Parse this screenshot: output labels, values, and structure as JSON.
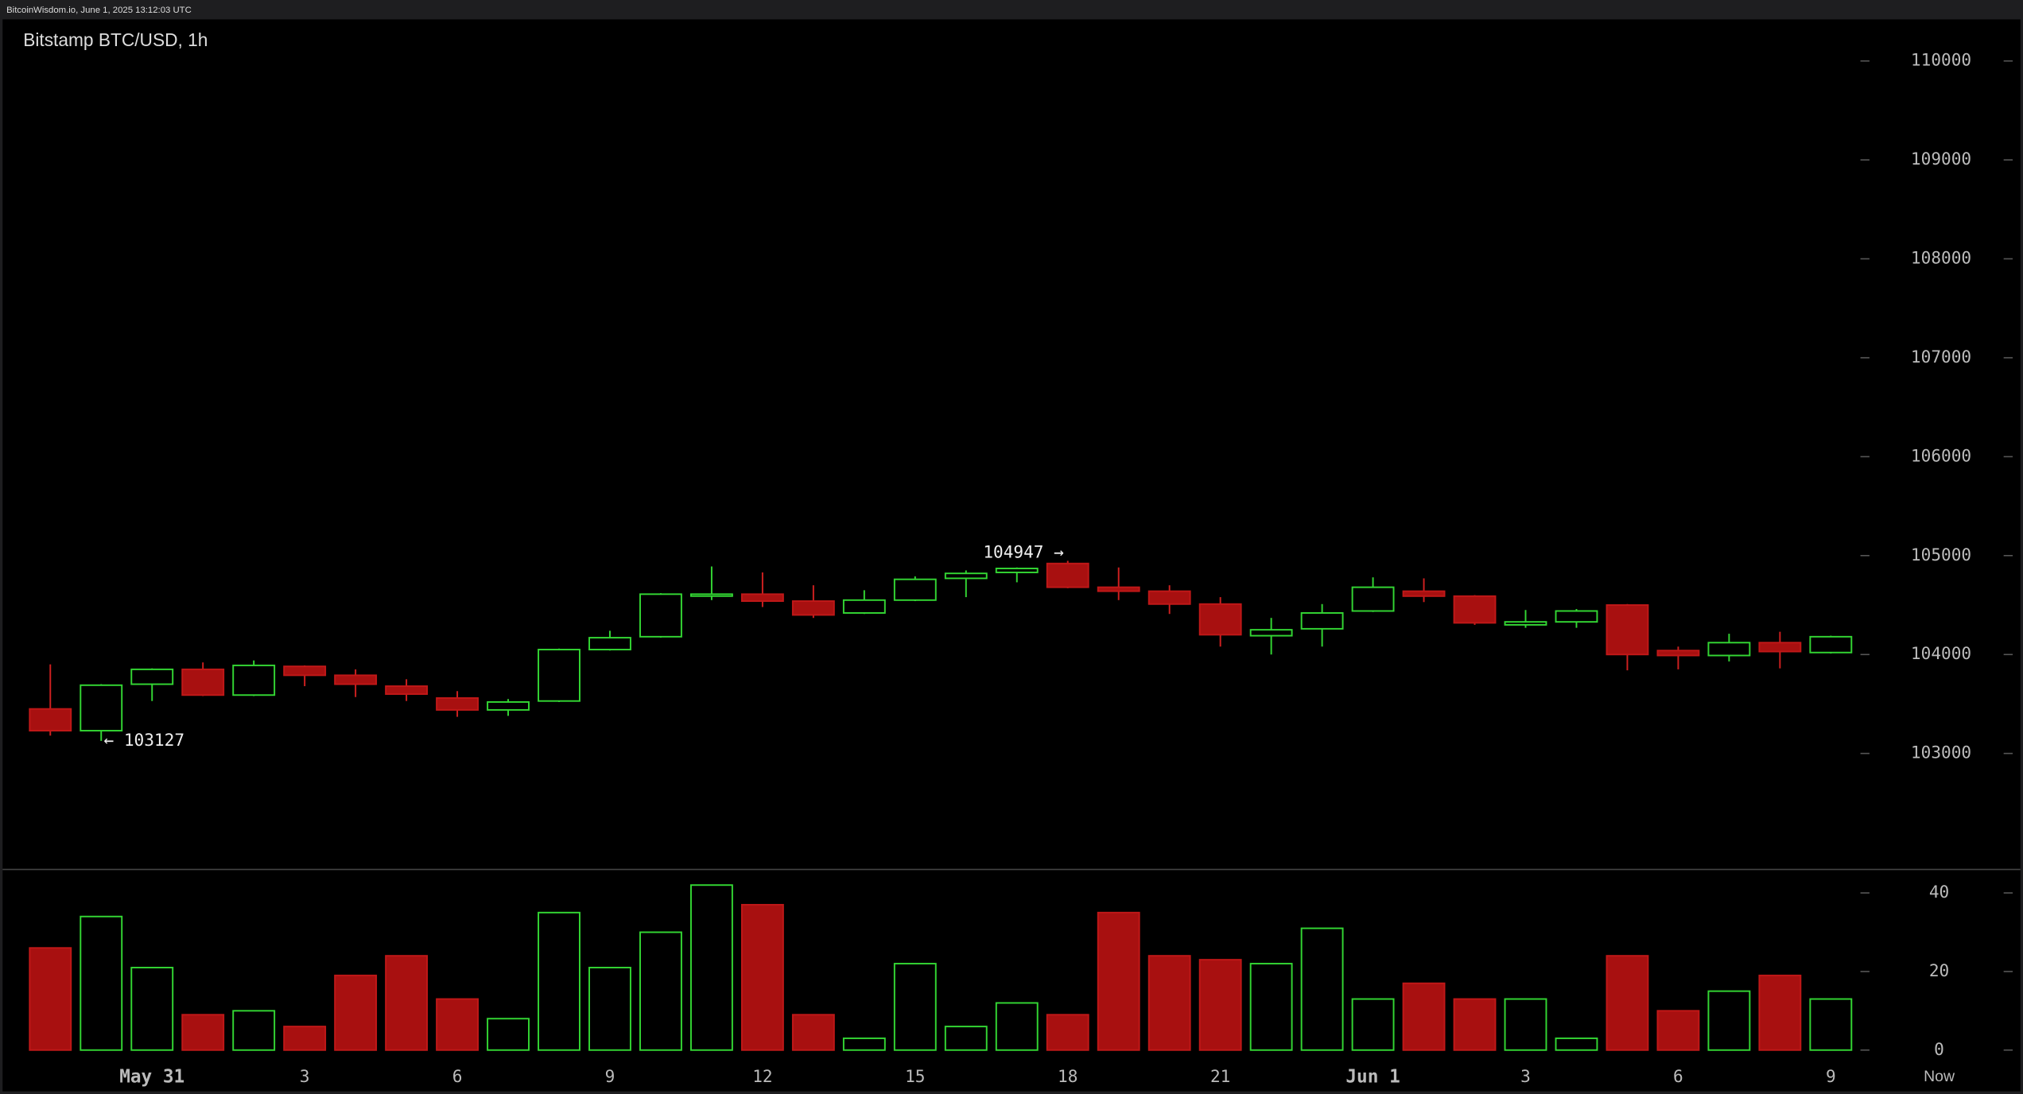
{
  "header": "BitcoinWisdom.io, June 1, 2025 13:12:03 UTC",
  "chart_data": {
    "type": "candlestick",
    "title": "Bitstamp BTC/USD, 1h",
    "categories": [
      null,
      null,
      "May 31",
      null,
      null,
      "3",
      null,
      null,
      "6",
      null,
      null,
      "9",
      null,
      null,
      "12",
      null,
      null,
      "15",
      null,
      null,
      "18",
      null,
      null,
      "21",
      null,
      null,
      "Jun 1",
      null,
      null,
      "3",
      null,
      null,
      "6",
      null,
      null,
      "9"
    ],
    "end_label": "Now",
    "open": [
      103450,
      103230,
      103700,
      103850,
      103590,
      103880,
      103790,
      103680,
      103560,
      103440,
      103530,
      104050,
      104180,
      104600,
      104610,
      104540,
      104420,
      104550,
      104770,
      104830,
      104920,
      104680,
      104640,
      104510,
      104190,
      104260,
      104440,
      104640,
      104590,
      104300,
      104330,
      104500,
      104040,
      103990,
      104120,
      104020
    ],
    "high": [
      103900,
      103700,
      103860,
      103920,
      103940,
      103890,
      103850,
      103750,
      103630,
      103550,
      104060,
      104240,
      104620,
      104890,
      104830,
      104700,
      104650,
      104790,
      104850,
      104880,
      104947,
      104880,
      104700,
      104580,
      104370,
      104510,
      104780,
      104770,
      104600,
      104450,
      104460,
      104510,
      104080,
      104210,
      104230,
      104190
    ],
    "low": [
      103180,
      103127,
      103530,
      103580,
      103580,
      103680,
      103570,
      103530,
      103370,
      103380,
      103520,
      104040,
      104170,
      104550,
      104480,
      104370,
      104410,
      104540,
      104580,
      104730,
      104670,
      104550,
      104410,
      104080,
      104000,
      104080,
      104430,
      104530,
      104300,
      104270,
      104270,
      103840,
      103850,
      103930,
      103860,
      104010
    ],
    "close": [
      103230,
      103690,
      103850,
      103590,
      103890,
      103790,
      103700,
      103600,
      103440,
      103520,
      104050,
      104170,
      104610,
      104610,
      104540,
      104400,
      104550,
      104760,
      104820,
      104870,
      104680,
      104640,
      104510,
      104200,
      104250,
      104420,
      104680,
      104590,
      104320,
      104330,
      104440,
      104000,
      103990,
      104120,
      104030,
      104180
    ],
    "volume": [
      26,
      34,
      21,
      9,
      10,
      6,
      19,
      24,
      13,
      8,
      35,
      21,
      30,
      42,
      37,
      9,
      3,
      22,
      6,
      12,
      9,
      35,
      24,
      23,
      22,
      31,
      13,
      17,
      13,
      13,
      3,
      24,
      10,
      15,
      19,
      13
    ],
    "up_color": "#33d633",
    "down_color": "#a81010",
    "ylim": [
      101840,
      110420
    ],
    "yticks": [
      103000,
      104000,
      105000,
      106000,
      107000,
      108000,
      109000,
      110000
    ],
    "volume_ylim": [
      0,
      44
    ],
    "volume_yticks": [
      0,
      20,
      40
    ],
    "annotations": [
      {
        "text": "← 103127",
        "value": 103127
      },
      {
        "text": "104947 →",
        "value": 104947
      }
    ]
  }
}
